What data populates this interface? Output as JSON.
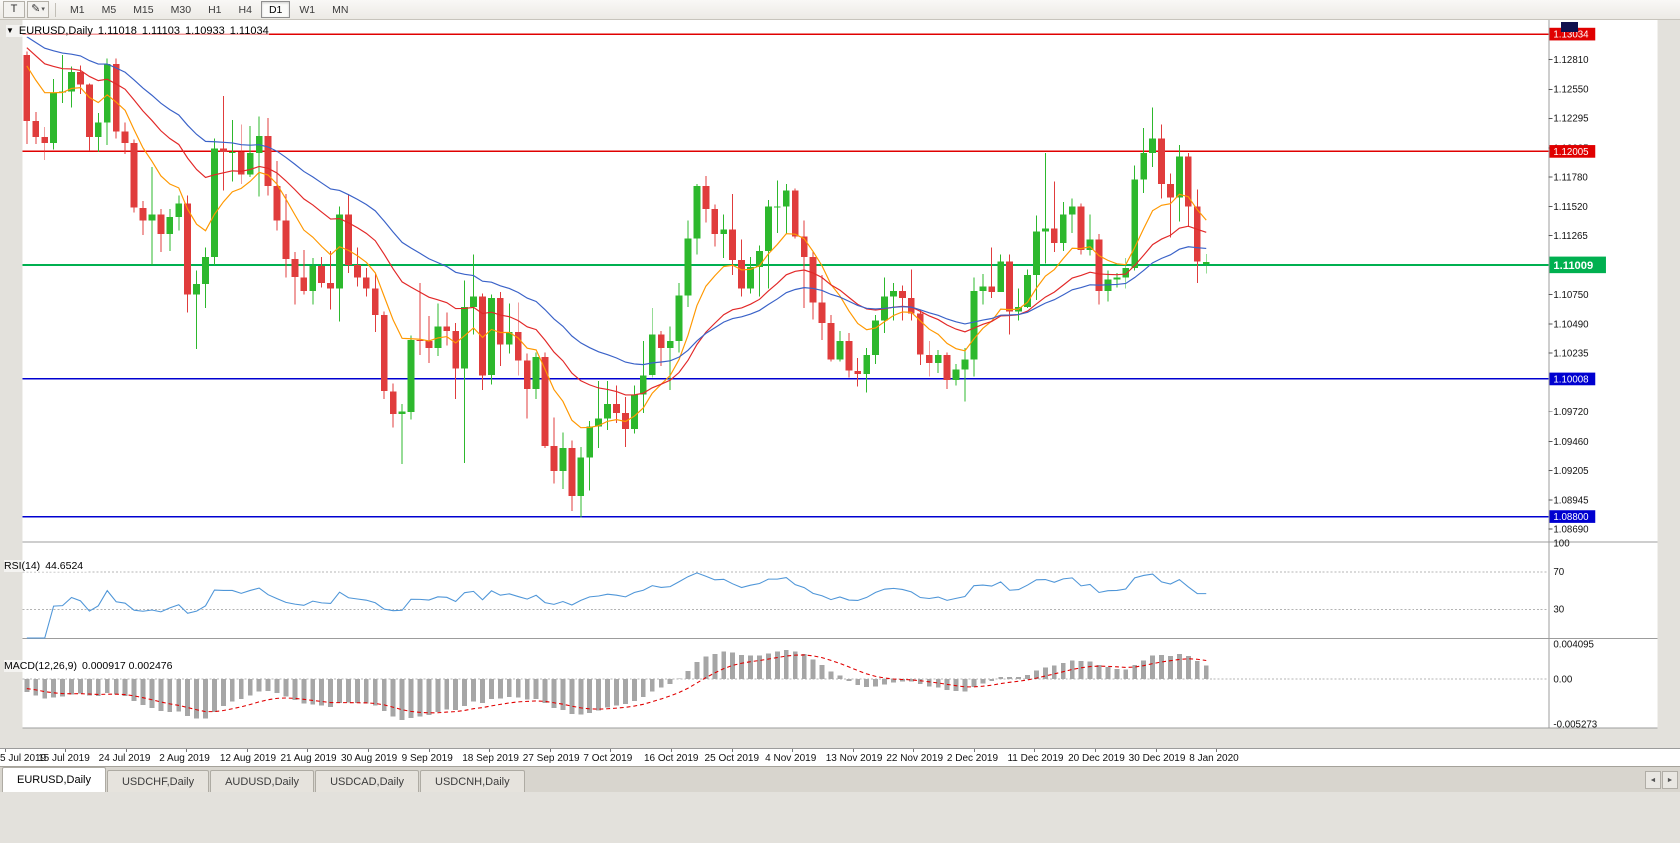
{
  "icons": {
    "pencil": "✎",
    "caret": "▾",
    "header_collapse": "▼",
    "tab_scroll_left": "◄",
    "tab_scroll_right": "►"
  },
  "toolbar": {
    "icon_t": "T",
    "timeframes": [
      {
        "label": "M1"
      },
      {
        "label": "M5"
      },
      {
        "label": "M15"
      },
      {
        "label": "M30"
      },
      {
        "label": "H1"
      },
      {
        "label": "H4"
      },
      {
        "label": "D1",
        "active": true
      },
      {
        "label": "W1"
      },
      {
        "label": "MN"
      }
    ]
  },
  "header": {
    "symbol": "EURUSD,Daily",
    "open": "1.11018",
    "high": "1.11103",
    "low": "1.10933",
    "close": "1.11034"
  },
  "tabs": [
    {
      "label": "EURUSD,Daily",
      "active": true
    },
    {
      "label": "USDCHF,Daily"
    },
    {
      "label": "AUDUSD,Daily"
    },
    {
      "label": "USDCAD,Daily"
    },
    {
      "label": "USDCNH,Daily"
    }
  ],
  "chart_data": {
    "type": "candlestick",
    "symbol": "EURUSD",
    "period": "Daily",
    "colors": {
      "up": "#2db82d",
      "down": "#e03c3c",
      "rsi": "#4f96d8",
      "macd_hist": "#a6a6a6",
      "macd_signal": "#e00000"
    },
    "hlines": [
      {
        "price": 1.13034,
        "label": "1.13034",
        "color": "#e00000",
        "width": 1.6
      },
      {
        "price": 1.12005,
        "label": "1.12005",
        "color": "#e00000",
        "width": 1.6
      },
      {
        "price": 1.11009,
        "label": "1.11009",
        "color": "#00b050",
        "width": 2,
        "big": true
      },
      {
        "price": 1.10008,
        "label": "1.10008",
        "color": "#0000d0",
        "width": 1.6
      },
      {
        "price": 1.088,
        "label": "1.08800",
        "color": "#0000d0",
        "width": 1.6
      }
    ],
    "price_axis": {
      "ticks": [
        "1.12810",
        "1.12550",
        "1.12295",
        "1.12035",
        "1.11780",
        "1.11520",
        "1.11265",
        "1.10750",
        "1.10490",
        "1.10235",
        "1.09720",
        "1.09460",
        "1.09205",
        "1.08945",
        "1.08690"
      ]
    },
    "date_labels": [
      "5 Jul 2019",
      "15 Jul 2019",
      "24 Jul 2019",
      "2 Aug 2019",
      "12 Aug 2019",
      "21 Aug 2019",
      "30 Aug 2019",
      "9 Sep 2019",
      "18 Sep 2019",
      "27 Sep 2019",
      "7 Oct 2019",
      "16 Oct 2019",
      "25 Oct 2019",
      "4 Nov 2019",
      "13 Nov 2019",
      "22 Nov 2019",
      "2 Dec 2019",
      "11 Dec 2019",
      "20 Dec 2019",
      "30 Dec 2019",
      "8 Jan 2020"
    ],
    "moving_averages": [
      {
        "name": "ma-fast",
        "period": 9,
        "color": "#ff9800"
      },
      {
        "name": "ma-mid",
        "period": 21,
        "color": "#e22828"
      },
      {
        "name": "ma-slow",
        "period": 34,
        "color": "#3a62c8"
      }
    ],
    "rsi": {
      "label": "RSI(14)",
      "value_text": "44.6524",
      "period": 14,
      "levels": [
        100,
        70,
        30
      ]
    },
    "macd": {
      "label": "MACD(12,26,9)",
      "value_text": "0.000917 0.002476",
      "fast": 12,
      "slow": 26,
      "signal": 9,
      "axis_labels": [
        {
          "v": 0.004095,
          "text": "0.004095"
        },
        {
          "v": 0,
          "text": "0.00"
        },
        {
          "v": -0.005273,
          "text": "-0.005273"
        }
      ]
    },
    "seed_closes": [
      1.133,
      1.1326,
      1.1322,
      1.1318,
      1.1314,
      1.131,
      1.1306,
      1.1302,
      1.1298,
      1.1295,
      1.1292,
      1.129,
      1.1288,
      1.1287,
      1.1286,
      1.1285,
      1.1285,
      1.1284,
      1.1284,
      1.1284
    ],
    "candles": [
      [
        1.1285,
        1.1288,
        1.1207,
        1.1227
      ],
      [
        1.1227,
        1.1235,
        1.1207,
        1.1213
      ],
      [
        1.1213,
        1.1222,
        1.1193,
        1.1208
      ],
      [
        1.1208,
        1.1264,
        1.1202,
        1.1252
      ],
      [
        1.1252,
        1.1285,
        1.1243,
        1.1253
      ],
      [
        1.1253,
        1.1275,
        1.1239,
        1.127
      ],
      [
        1.127,
        1.1276,
        1.1251,
        1.1259
      ],
      [
        1.1259,
        1.126,
        1.1201,
        1.1213
      ],
      [
        1.1213,
        1.1234,
        1.12,
        1.1226
      ],
      [
        1.1226,
        1.1282,
        1.1206,
        1.1277
      ],
      [
        1.1277,
        1.1282,
        1.1212,
        1.1218
      ],
      [
        1.1218,
        1.1226,
        1.1198,
        1.1208
      ],
      [
        1.1208,
        1.1211,
        1.1147,
        1.1151
      ],
      [
        1.1151,
        1.1157,
        1.1127,
        1.114
      ],
      [
        1.114,
        1.1187,
        1.1101,
        1.1145
      ],
      [
        1.1145,
        1.115,
        1.1112,
        1.1128
      ],
      [
        1.1128,
        1.115,
        1.1113,
        1.1143
      ],
      [
        1.1143,
        1.1162,
        1.1131,
        1.1155
      ],
      [
        1.1155,
        1.1162,
        1.1059,
        1.1075
      ],
      [
        1.1075,
        1.1096,
        1.1027,
        1.1084
      ],
      [
        1.1084,
        1.1116,
        1.1063,
        1.1108
      ],
      [
        1.1108,
        1.1212,
        1.1101,
        1.1203
      ],
      [
        1.1203,
        1.1249,
        1.1166,
        1.12
      ],
      [
        1.12,
        1.1228,
        1.1174,
        1.12
      ],
      [
        1.12,
        1.1224,
        1.1172,
        1.118
      ],
      [
        1.118,
        1.1223,
        1.1178,
        1.1199
      ],
      [
        1.1199,
        1.1231,
        1.1161,
        1.1214
      ],
      [
        1.1214,
        1.123,
        1.1162,
        1.117
      ],
      [
        1.117,
        1.1192,
        1.1131,
        1.114
      ],
      [
        1.114,
        1.1163,
        1.109,
        1.1106
      ],
      [
        1.1106,
        1.1112,
        1.1066,
        1.109
      ],
      [
        1.109,
        1.1114,
        1.1075,
        1.1078
      ],
      [
        1.1078,
        1.1107,
        1.1066,
        1.11
      ],
      [
        1.11,
        1.1108,
        1.1081,
        1.1085
      ],
      [
        1.1085,
        1.1113,
        1.1062,
        1.108
      ],
      [
        1.108,
        1.1152,
        1.1051,
        1.1145
      ],
      [
        1.1145,
        1.1163,
        1.1094,
        1.1101
      ],
      [
        1.1101,
        1.1116,
        1.1082,
        1.109
      ],
      [
        1.109,
        1.1098,
        1.1073,
        1.108
      ],
      [
        1.108,
        1.1094,
        1.1042,
        1.1057
      ],
      [
        1.1057,
        1.106,
        1.0983,
        1.099
      ],
      [
        1.099,
        1.0997,
        1.0958,
        1.097
      ],
      [
        1.097,
        1.0979,
        1.0926,
        1.0972
      ],
      [
        1.0972,
        1.1039,
        1.0965,
        1.1035
      ],
      [
        1.1035,
        1.1085,
        1.1022,
        1.1034
      ],
      [
        1.1034,
        1.1056,
        1.1015,
        1.1028
      ],
      [
        1.1028,
        1.1067,
        1.1021,
        1.1047
      ],
      [
        1.1047,
        1.1059,
        1.103,
        1.1043
      ],
      [
        1.1043,
        1.105,
        1.0983,
        1.101
      ],
      [
        1.101,
        1.1087,
        1.0927,
        1.1064
      ],
      [
        1.1064,
        1.111,
        1.104,
        1.1073
      ],
      [
        1.1073,
        1.1076,
        1.0991,
        1.1004
      ],
      [
        1.1004,
        1.1075,
        1.0996,
        1.1072
      ],
      [
        1.1072,
        1.1077,
        1.1012,
        1.1031
      ],
      [
        1.1031,
        1.1067,
        1.1023,
        1.1042
      ],
      [
        1.1042,
        1.1068,
        1.1004,
        1.1017
      ],
      [
        1.1017,
        1.1023,
        1.0966,
        1.0992
      ],
      [
        1.0992,
        1.1024,
        1.0983,
        1.102
      ],
      [
        1.102,
        1.1024,
        1.094,
        1.0942
      ],
      [
        1.0942,
        1.0967,
        1.0909,
        1.092
      ],
      [
        1.092,
        1.0954,
        1.0904,
        1.094
      ],
      [
        1.094,
        1.0947,
        1.0885,
        1.0898
      ],
      [
        1.0898,
        1.0941,
        1.0879,
        1.0932
      ],
      [
        1.0932,
        1.0964,
        1.0903,
        1.0959
      ],
      [
        1.0959,
        1.0999,
        1.094,
        1.0966
      ],
      [
        1.0966,
        1.0999,
        1.0956,
        1.0979
      ],
      [
        1.0979,
        1.0995,
        1.0962,
        1.0971
      ],
      [
        1.0971,
        1.0985,
        1.0941,
        1.0957
      ],
      [
        1.0957,
        1.0995,
        1.0953,
        1.0987
      ],
      [
        1.0987,
        1.1034,
        1.0971,
        1.1004
      ],
      [
        1.1004,
        1.1063,
        1.1002,
        1.104
      ],
      [
        1.104,
        1.1043,
        1.1012,
        1.1028
      ],
      [
        1.1028,
        1.1047,
        1.0991,
        1.1034
      ],
      [
        1.1034,
        1.1085,
        1.1024,
        1.1074
      ],
      [
        1.1074,
        1.114,
        1.1064,
        1.1124
      ],
      [
        1.1124,
        1.1172,
        1.111,
        1.117
      ],
      [
        1.117,
        1.1179,
        1.1138,
        1.115
      ],
      [
        1.115,
        1.1154,
        1.1117,
        1.1128
      ],
      [
        1.1128,
        1.1145,
        1.1107,
        1.1132
      ],
      [
        1.1132,
        1.1163,
        1.1092,
        1.1105
      ],
      [
        1.1105,
        1.1123,
        1.1073,
        1.108
      ],
      [
        1.108,
        1.1108,
        1.1076,
        1.1099
      ],
      [
        1.1099,
        1.1118,
        1.1073,
        1.1113
      ],
      [
        1.1113,
        1.1158,
        1.108,
        1.1152
      ],
      [
        1.1152,
        1.1175,
        1.1129,
        1.1152
      ],
      [
        1.1152,
        1.1172,
        1.1128,
        1.1166
      ],
      [
        1.1166,
        1.1168,
        1.1124,
        1.1126
      ],
      [
        1.1126,
        1.114,
        1.1063,
        1.1108
      ],
      [
        1.1108,
        1.1112,
        1.1053,
        1.1068
      ],
      [
        1.1068,
        1.1092,
        1.1035,
        1.105
      ],
      [
        1.105,
        1.1057,
        1.1016,
        1.1018
      ],
      [
        1.1018,
        1.1043,
        1.1016,
        1.1034
      ],
      [
        1.1034,
        1.1041,
        1.1002,
        1.1008
      ],
      [
        1.1008,
        1.1019,
        1.0994,
        1.1005
      ],
      [
        1.1005,
        1.1028,
        1.0989,
        1.1022
      ],
      [
        1.1022,
        1.1057,
        1.1014,
        1.1052
      ],
      [
        1.1052,
        1.109,
        1.1041,
        1.1073
      ],
      [
        1.1073,
        1.1085,
        1.1052,
        1.1078
      ],
      [
        1.1078,
        1.1083,
        1.1052,
        1.1072
      ],
      [
        1.1072,
        1.1097,
        1.1052,
        1.1058
      ],
      [
        1.1058,
        1.1062,
        1.1013,
        1.1022
      ],
      [
        1.1022,
        1.1034,
        1.1003,
        1.1015
      ],
      [
        1.1015,
        1.1026,
        1.1006,
        1.1022
      ],
      [
        1.1022,
        1.1024,
        1.0992,
        1.1
      ],
      [
        1.1,
        1.1014,
        1.0995,
        1.1009
      ],
      [
        1.1009,
        1.1028,
        1.0981,
        1.1018
      ],
      [
        1.1018,
        1.109,
        1.1003,
        1.1078
      ],
      [
        1.1078,
        1.1093,
        1.1066,
        1.1082
      ],
      [
        1.1082,
        1.1116,
        1.1072,
        1.1077
      ],
      [
        1.1077,
        1.111,
        1.1077,
        1.1104
      ],
      [
        1.1104,
        1.111,
        1.104,
        1.106
      ],
      [
        1.106,
        1.108,
        1.1052,
        1.1064
      ],
      [
        1.1064,
        1.1097,
        1.1063,
        1.1092
      ],
      [
        1.1092,
        1.1144,
        1.107,
        1.113
      ],
      [
        1.113,
        1.1199,
        1.1102,
        1.1133
      ],
      [
        1.1133,
        1.1174,
        1.1112,
        1.112
      ],
      [
        1.112,
        1.1156,
        1.1113,
        1.1145
      ],
      [
        1.1145,
        1.1159,
        1.1129,
        1.1152
      ],
      [
        1.1152,
        1.1155,
        1.111,
        1.1114
      ],
      [
        1.1114,
        1.1145,
        1.1109,
        1.1123
      ],
      [
        1.1123,
        1.1128,
        1.1066,
        1.1078
      ],
      [
        1.1078,
        1.1096,
        1.1069,
        1.1088
      ],
      [
        1.1088,
        1.1094,
        1.1081,
        1.109
      ],
      [
        1.109,
        1.1107,
        1.108,
        1.1098
      ],
      [
        1.1098,
        1.1188,
        1.1096,
        1.1176
      ],
      [
        1.1176,
        1.1221,
        1.1164,
        1.1199
      ],
      [
        1.1199,
        1.1239,
        1.1187,
        1.1212
      ],
      [
        1.1212,
        1.1224,
        1.1159,
        1.1172
      ],
      [
        1.1172,
        1.1181,
        1.1125,
        1.116
      ],
      [
        1.116,
        1.1206,
        1.1139,
        1.1196
      ],
      [
        1.1196,
        1.1199,
        1.1134,
        1.1152
      ],
      [
        1.1152,
        1.1167,
        1.1085,
        1.1104
      ],
      [
        1.11018,
        1.11103,
        1.10933,
        1.11034
      ]
    ]
  }
}
